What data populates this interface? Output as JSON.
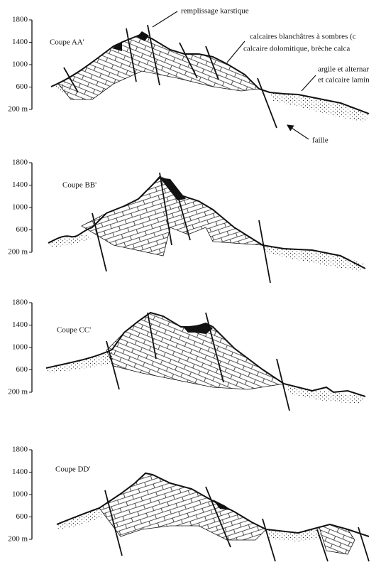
{
  "annotations": {
    "karst": "remplissage karstique",
    "limestone_1": "calcaires blanchâtres à sombres (c",
    "limestone_2": "calcaire dolomitique, brèche calca",
    "clay_1": "argile et alternar",
    "clay_2": "et calcaire lamin",
    "fault": "faille"
  },
  "sections": [
    {
      "title": "Coupe AA'",
      "ticks": [
        "1800",
        "1400",
        "1000",
        "600",
        "200 m"
      ]
    },
    {
      "title": "Coupe BB'",
      "ticks": [
        "1800",
        "1400",
        "1000",
        "600",
        "200 m"
      ]
    },
    {
      "title": "Coupe CC'",
      "ticks": [
        "1800",
        "1400",
        "1000",
        "600",
        "200 m"
      ]
    },
    {
      "title": "Coupe DD'",
      "ticks": [
        "1800",
        "1400",
        "1000",
        "600",
        "200 m"
      ]
    }
  ]
}
